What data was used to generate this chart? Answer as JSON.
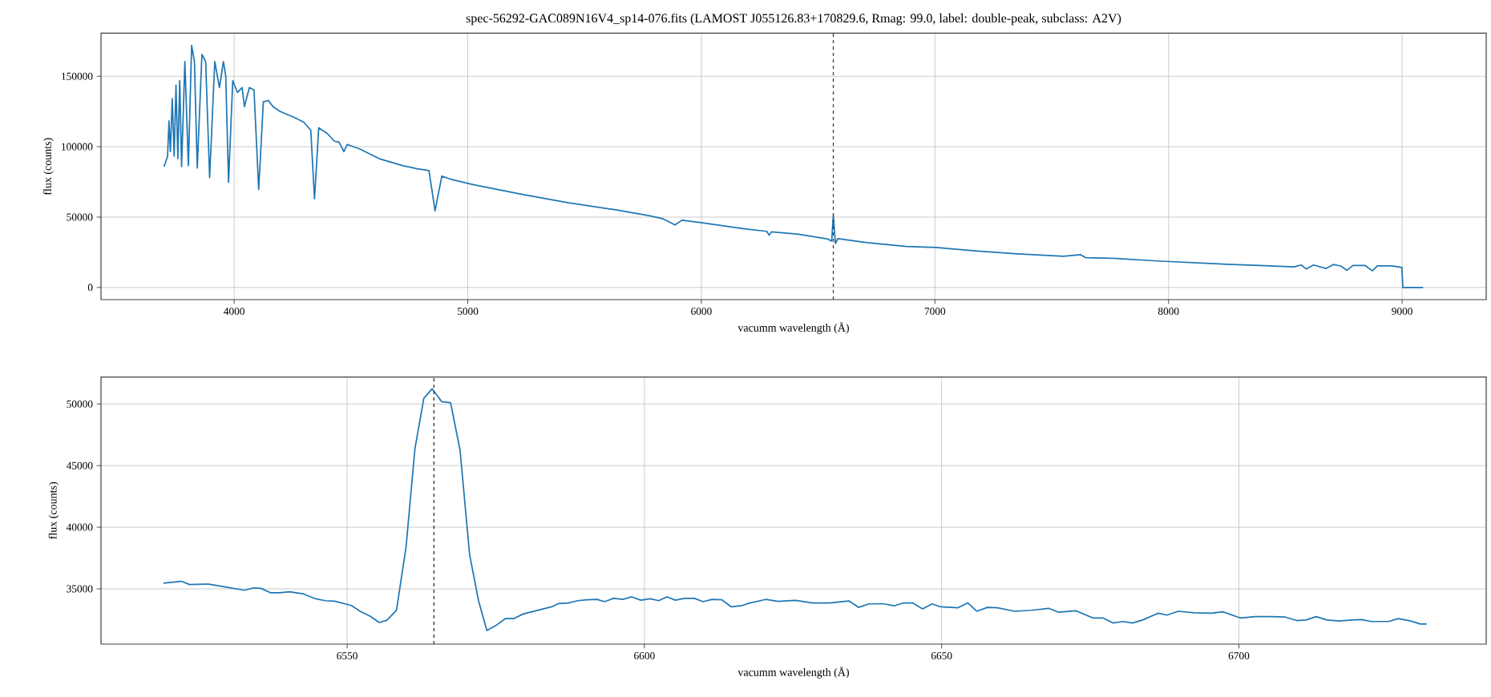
{
  "chart_data": [
    {
      "type": "line",
      "title": "spec-56292-GAC089N16V4_sp14-076.fits (LAMOST J055126.83+170829.6, Rmag: 99.0, label: double-peak, subclass: A2V)",
      "xlabel": "vacumm wavelength (Å)",
      "ylabel": "flux (counts)",
      "color": "#1f77b4",
      "grid": true,
      "x": [
        3700,
        3715,
        3721,
        3727,
        3735,
        3743,
        3751,
        3759,
        3767,
        3775,
        3789,
        3804,
        3818,
        3830,
        3842,
        3862,
        3878,
        3895,
        3917,
        3937,
        3954,
        3964,
        3976,
        3994,
        4014,
        4034,
        4044,
        4065,
        4085,
        4105,
        4125,
        4146,
        4166,
        4196,
        4257,
        4298,
        4328,
        4344,
        4362,
        4399,
        4429,
        4449,
        4470,
        4484,
        4540,
        4621,
        4723,
        4783,
        4834,
        4860,
        4889,
        4925,
        5026,
        5229,
        5431,
        5633,
        5775,
        5836,
        5887,
        5917,
        5998,
        6185,
        6280,
        6290,
        6301,
        6416,
        6542,
        6558,
        6565,
        6574,
        6584,
        6710,
        6878,
        7004,
        7172,
        7340,
        7550,
        7624,
        7645,
        7760,
        7970,
        8180,
        8390,
        8537,
        8568,
        8589,
        8621,
        8674,
        8705,
        8737,
        8764,
        8789,
        8842,
        8873,
        8894,
        8957,
        8999,
        9003,
        9090
      ],
      "values": [
        85800,
        93200,
        118400,
        96500,
        134200,
        93200,
        143600,
        91500,
        147000,
        85800,
        160500,
        86500,
        172000,
        160500,
        84800,
        165500,
        160500,
        78000,
        160500,
        142000,
        160500,
        150400,
        74700,
        147000,
        138600,
        142000,
        128500,
        142000,
        140300,
        69600,
        131900,
        132900,
        128500,
        125100,
        120800,
        117400,
        111700,
        62900,
        113400,
        109300,
        103900,
        103300,
        96500,
        101600,
        98200,
        91500,
        86500,
        84400,
        83100,
        54500,
        79100,
        77000,
        73000,
        66300,
        60200,
        55200,
        51100,
        48800,
        44400,
        47800,
        46100,
        41700,
        39900,
        37200,
        39600,
        37800,
        34400,
        33000,
        51200,
        31200,
        34700,
        31900,
        29200,
        28500,
        26000,
        24000,
        22200,
        23300,
        21200,
        20800,
        18700,
        17000,
        15600,
        14600,
        16000,
        13200,
        16000,
        13500,
        16300,
        15300,
        12200,
        15600,
        15600,
        11800,
        15300,
        15300,
        14200,
        0,
        0
      ],
      "xlim": [
        3430,
        9360
      ],
      "ylim": [
        -8600,
        180600
      ],
      "xticks": [
        4000,
        5000,
        6000,
        7000,
        8000,
        9000
      ],
      "yticks": [
        0,
        50000,
        100000,
        150000
      ],
      "ref_lines": [
        {
          "axis": "x",
          "value": 6564.6,
          "color": "#404040",
          "line_style": "dashed"
        }
      ]
    },
    {
      "type": "line",
      "xlabel": "vacumm wavelength (Å)",
      "ylabel": "flux (counts)",
      "color": "#1f77b4",
      "grid": true,
      "x": [
        6519.1,
        6522.1,
        6523.5,
        6526.7,
        6529.1,
        6532.7,
        6534.3,
        6535.5,
        6537.1,
        6538.7,
        6540.3,
        6542.7,
        6544.7,
        6546.3,
        6547.9,
        6550.7,
        6552.3,
        6553.9,
        6555.4,
        6556.7,
        6558.3,
        6559.9,
        6561.4,
        6562.9,
        6564.3,
        6565.9,
        6567.4,
        6569.0,
        6570.6,
        6572.1,
        6573.5,
        6575.2,
        6576.6,
        6578.0,
        6579.6,
        6581.2,
        6582.8,
        6584.4,
        6585.6,
        6587.2,
        6588.8,
        6590.4,
        6592.0,
        6593.3,
        6594.8,
        6596.4,
        6597.8,
        6599.4,
        6601.0,
        6602.4,
        6603.8,
        6605.2,
        6606.8,
        6608.4,
        6609.9,
        6611.4,
        6613.0,
        6614.6,
        6616.3,
        6617.5,
        6620.4,
        6622.5,
        6625.4,
        6628.3,
        6631.2,
        6634.4,
        6636.0,
        6637.8,
        6640.3,
        6642.0,
        6643.6,
        6645.1,
        6646.8,
        6648.4,
        6649.8,
        6652.7,
        6654.4,
        6655.9,
        6657.7,
        6659.4,
        6662.3,
        6665.1,
        6668.0,
        6669.7,
        6672.6,
        6675.5,
        6677.2,
        6678.8,
        6680.5,
        6682.1,
        6683.8,
        6686.4,
        6687.9,
        6689.8,
        6692.5,
        6695.4,
        6697.3,
        6700.3,
        6702.8,
        6705.3,
        6707.8,
        6709.7,
        6711.3,
        6713.0,
        6714.8,
        6716.9,
        6718.9,
        6720.6,
        6722.3,
        6725.2,
        6726.8,
        6728.9,
        6730.5,
        6731.6
      ],
      "values": [
        35460,
        35615,
        35350,
        35385,
        35190,
        34885,
        35080,
        35040,
        34690,
        34690,
        34770,
        34580,
        34190,
        34040,
        34000,
        33650,
        33150,
        32770,
        32270,
        32460,
        33270,
        38350,
        46350,
        50460,
        51230,
        50190,
        50110,
        46230,
        37770,
        34040,
        31620,
        32080,
        32580,
        32580,
        32960,
        33150,
        33350,
        33540,
        33810,
        33850,
        34040,
        34120,
        34150,
        33960,
        34230,
        34150,
        34350,
        34080,
        34190,
        34040,
        34350,
        34080,
        34230,
        34230,
        33960,
        34150,
        34120,
        33540,
        33620,
        33820,
        34140,
        33980,
        34060,
        33860,
        33860,
        34020,
        33500,
        33780,
        33780,
        33620,
        33860,
        33860,
        33380,
        33780,
        33540,
        33460,
        33860,
        33180,
        33500,
        33460,
        33180,
        33260,
        33420,
        33100,
        33220,
        32630,
        32630,
        32230,
        32350,
        32230,
        32470,
        33020,
        32870,
        33180,
        33060,
        33020,
        33140,
        32630,
        32750,
        32750,
        32710,
        32430,
        32470,
        32750,
        32470,
        32390,
        32470,
        32510,
        32350,
        32350,
        32590,
        32390,
        32150,
        32150
      ],
      "xlim": [
        6508.6,
        6741.6
      ],
      "ylim": [
        30515,
        52185
      ],
      "xticks": [
        6550,
        6600,
        6650,
        6700
      ],
      "yticks": [
        35000,
        40000,
        45000,
        50000
      ],
      "ref_lines": [
        {
          "axis": "x",
          "value": 6564.6,
          "color": "#404040",
          "line_style": "dashed"
        }
      ]
    }
  ]
}
